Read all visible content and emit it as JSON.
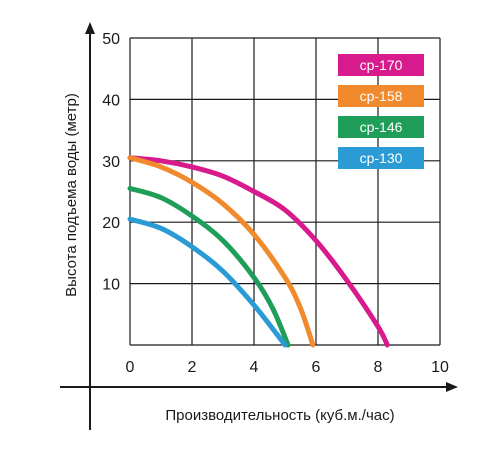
{
  "chart_data": {
    "type": "line",
    "title": "",
    "xlabel": "Производительность (куб.м./час)",
    "ylabel": "Высота подъема воды (метр)",
    "xlim": [
      0,
      10
    ],
    "ylim": [
      0,
      50
    ],
    "x_ticks": [
      "0",
      "2",
      "4",
      "6",
      "8",
      "10"
    ],
    "y_ticks": [
      "10",
      "20",
      "30",
      "40",
      "50"
    ],
    "grid": true,
    "legend_position": "top-right",
    "series": [
      {
        "name": "cp-170",
        "color": "#d81b8c",
        "points": [
          [
            0,
            30.5
          ],
          [
            1,
            30
          ],
          [
            2,
            29
          ],
          [
            3,
            27.5
          ],
          [
            4,
            25
          ],
          [
            5,
            22
          ],
          [
            6,
            17
          ],
          [
            7,
            10.5
          ],
          [
            8,
            3
          ],
          [
            8.3,
            0
          ]
        ]
      },
      {
        "name": "cp-158",
        "color": "#f08a2c",
        "points": [
          [
            0,
            30.5
          ],
          [
            1,
            29
          ],
          [
            2,
            26.5
          ],
          [
            3,
            23
          ],
          [
            4,
            18
          ],
          [
            5,
            11
          ],
          [
            5.5,
            6
          ],
          [
            5.9,
            0
          ]
        ]
      },
      {
        "name": "cp-146",
        "color": "#1f9e5a",
        "points": [
          [
            0,
            25.5
          ],
          [
            1,
            24
          ],
          [
            2,
            21
          ],
          [
            3,
            17
          ],
          [
            4,
            11
          ],
          [
            4.6,
            6
          ],
          [
            5.1,
            0
          ]
        ]
      },
      {
        "name": "cp-130",
        "color": "#2b9bd6",
        "points": [
          [
            0,
            20.5
          ],
          [
            1,
            19
          ],
          [
            2,
            16
          ],
          [
            3,
            12
          ],
          [
            4,
            6.5
          ],
          [
            4.7,
            2
          ],
          [
            5.0,
            0
          ]
        ]
      }
    ]
  }
}
